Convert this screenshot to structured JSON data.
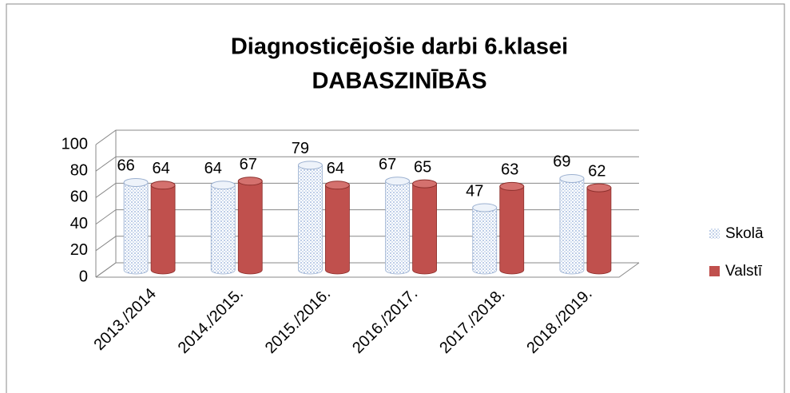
{
  "chart_data": {
    "type": "bar3d",
    "title": [
      "Diagnosticējošie darbi 6.klasei",
      "DABASZINĪBĀS"
    ],
    "categories": [
      "2013./2014",
      "2014./2015.",
      "2015./2016.",
      "2016./2017.",
      "2017./2018.",
      "2018./2019."
    ],
    "series": [
      {
        "name": "Skolā",
        "color": "#c6d9f1",
        "values": [
          66,
          64,
          79,
          67,
          47,
          69
        ]
      },
      {
        "name": "Valstī",
        "color": "#c0504d",
        "values": [
          64,
          67,
          64,
          65,
          63,
          62
        ]
      }
    ],
    "ylim": [
      0,
      100
    ],
    "yticks": [
      0,
      20,
      40,
      60,
      80,
      100
    ],
    "grid": true,
    "legend": "right"
  }
}
